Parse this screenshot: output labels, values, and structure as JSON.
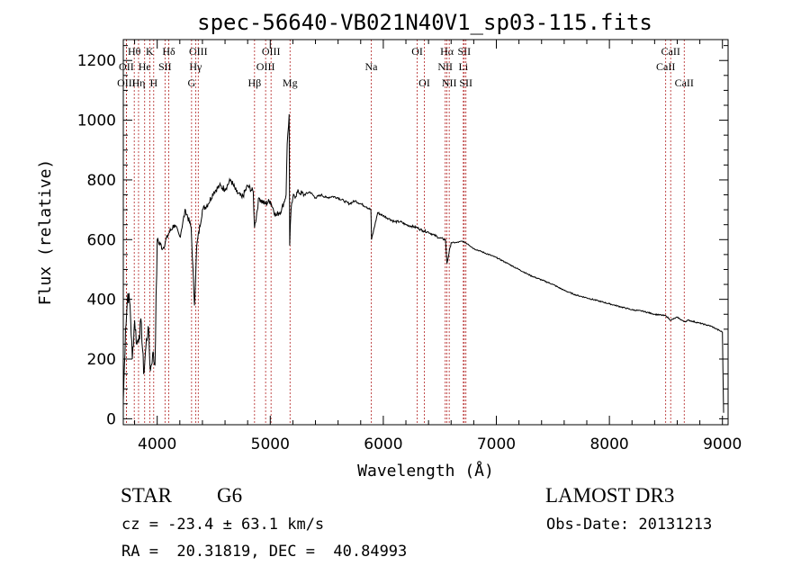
{
  "chart_data": {
    "type": "line",
    "title": "spec-56640-VB021N40V1_sp03-115.fits",
    "xlabel": "Wavelength (Å)",
    "ylabel": "Flux (relative)",
    "xlim": [
      3700,
      9050
    ],
    "ylim": [
      -20,
      1270
    ],
    "xticks": [
      4000,
      5000,
      6000,
      7000,
      8000,
      9000
    ],
    "yticks": [
      0,
      200,
      400,
      600,
      800,
      1000,
      1200
    ],
    "grid": false,
    "series": [
      {
        "name": "flux",
        "x": [
          3700,
          3720,
          3740,
          3760,
          3780,
          3800,
          3820,
          3840,
          3860,
          3880,
          3900,
          3920,
          3940,
          3960,
          3980,
          4000,
          4050,
          4100,
          4150,
          4200,
          4250,
          4300,
          4330,
          4350,
          4400,
          4450,
          4500,
          4550,
          4600,
          4650,
          4700,
          4750,
          4800,
          4850,
          4861,
          4900,
          4950,
          5000,
          5050,
          5100,
          5140,
          5150,
          5167,
          5172,
          5184,
          5200,
          5250,
          5300,
          5350,
          5400,
          5450,
          5500,
          5550,
          5600,
          5650,
          5700,
          5750,
          5800,
          5850,
          5890,
          5896,
          5950,
          6000,
          6050,
          6100,
          6150,
          6200,
          6250,
          6300,
          6350,
          6400,
          6450,
          6500,
          6550,
          6563,
          6600,
          6650,
          6700,
          6750,
          6800,
          6900,
          7000,
          7100,
          7200,
          7300,
          7400,
          7500,
          7600,
          7700,
          7800,
          7900,
          8000,
          8100,
          8200,
          8300,
          8400,
          8500,
          8542,
          8600,
          8662,
          8700,
          8800,
          8900,
          8950,
          9000,
          9010
        ],
        "y": [
          60,
          300,
          420,
          380,
          200,
          330,
          250,
          280,
          320,
          150,
          240,
          310,
          160,
          220,
          180,
          600,
          570,
          620,
          650,
          610,
          700,
          640,
          380,
          580,
          700,
          720,
          760,
          780,
          770,
          800,
          760,
          740,
          780,
          760,
          640,
          740,
          720,
          730,
          680,
          700,
          750,
          920,
          1020,
          580,
          700,
          740,
          760,
          750,
          760,
          740,
          750,
          740,
          745,
          740,
          730,
          720,
          730,
          720,
          710,
          700,
          600,
          690,
          680,
          670,
          660,
          660,
          650,
          645,
          640,
          630,
          625,
          615,
          605,
          600,
          520,
          590,
          590,
          595,
          585,
          570,
          555,
          540,
          520,
          500,
          480,
          465,
          450,
          430,
          415,
          405,
          395,
          385,
          375,
          365,
          360,
          350,
          345,
          330,
          340,
          325,
          330,
          320,
          310,
          300,
          290,
          20
        ]
      }
    ],
    "line_markers": [
      {
        "label": "Hθ",
        "x": 3797,
        "row": 1
      },
      {
        "label": "OII",
        "x": 3727,
        "row": 2
      },
      {
        "label": "OIII",
        "x": 3727,
        "row": 3
      },
      {
        "label": "He",
        "x": 3889,
        "row": 2
      },
      {
        "label": "K",
        "x": 3934,
        "row": 1
      },
      {
        "label": "Hη",
        "x": 3835,
        "row": 3
      },
      {
        "label": "H",
        "x": 3969,
        "row": 3
      },
      {
        "label": "SII",
        "x": 4069,
        "row": 2
      },
      {
        "label": "Hδ",
        "x": 4102,
        "row": 1
      },
      {
        "label": "OIII",
        "x": 4363,
        "row": 1
      },
      {
        "label": "Hγ",
        "x": 4340,
        "row": 2
      },
      {
        "label": "G",
        "x": 4304,
        "row": 3
      },
      {
        "label": "Hβ",
        "x": 4861,
        "row": 3
      },
      {
        "label": "OIII",
        "x": 5007,
        "row": 1
      },
      {
        "label": "OIII",
        "x": 4959,
        "row": 2
      },
      {
        "label": "Mg",
        "x": 5175,
        "row": 3
      },
      {
        "label": "Na",
        "x": 5893,
        "row": 2
      },
      {
        "label": "OI",
        "x": 6300,
        "row": 1
      },
      {
        "label": "OI",
        "x": 6363,
        "row": 3
      },
      {
        "label": "Hα",
        "x": 6563,
        "row": 1
      },
      {
        "label": "NII",
        "x": 6548,
        "row": 2
      },
      {
        "label": "NII",
        "x": 6583,
        "row": 3
      },
      {
        "label": "SII",
        "x": 6716,
        "row": 1
      },
      {
        "label": "Li",
        "x": 6708,
        "row": 2
      },
      {
        "label": "SII",
        "x": 6731,
        "row": 3
      },
      {
        "label": "CaII",
        "x": 8542,
        "row": 1
      },
      {
        "label": "CaII",
        "x": 8498,
        "row": 2
      },
      {
        "label": "CaII",
        "x": 8662,
        "row": 3
      }
    ]
  },
  "info": {
    "object_class": "STAR",
    "subclass": "G6",
    "survey": "LAMOST DR3",
    "cz": "cz = -23.4 ± 63.1 km/s",
    "obs_date": "Obs-Date: 20131213",
    "coords": "RA =  20.31819, DEC =  40.84993"
  }
}
